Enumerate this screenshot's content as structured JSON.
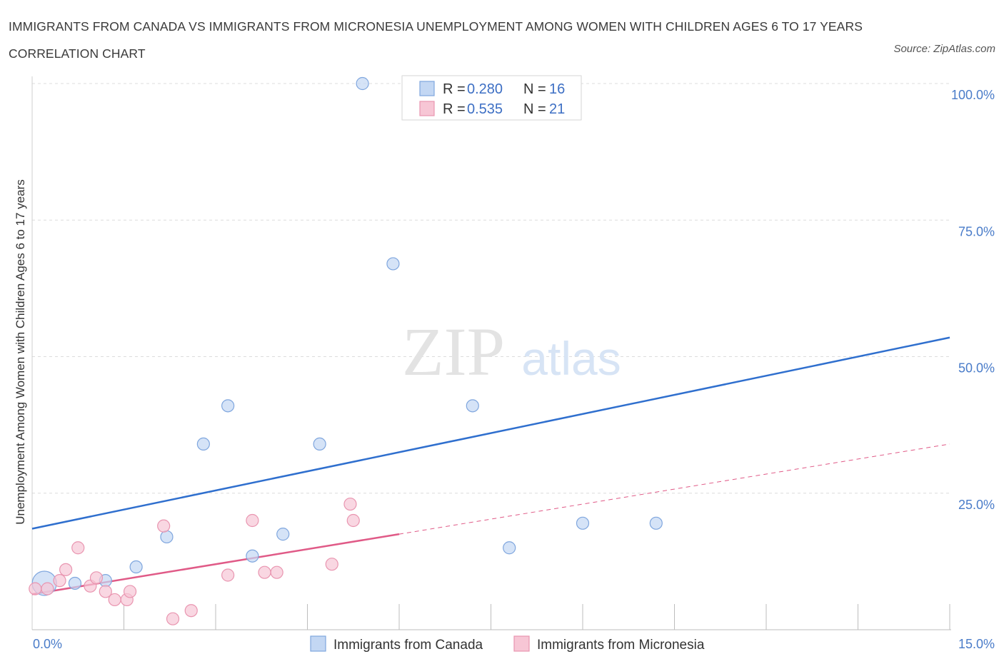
{
  "header": {
    "title": "IMMIGRANTS FROM CANADA VS IMMIGRANTS FROM MICRONESIA UNEMPLOYMENT AMONG WOMEN WITH CHILDREN AGES 6 TO 17 YEARS CORRELATION CHART",
    "source": "Source: ZipAtlas.com"
  },
  "watermark": {
    "zip": "ZIP",
    "atlas": "atlas"
  },
  "colors": {
    "canada_fill": "#c3d7f3",
    "canada_stroke": "#7fa6de",
    "canada_line": "#2f6fce",
    "micronesia_fill": "#f7c6d5",
    "micronesia_stroke": "#e995b0",
    "micronesia_line": "#e05a87",
    "grid": "#dcdcdc",
    "tick_text": "#4a7cc9"
  },
  "legend": {
    "rows": [
      {
        "r_label": "R =",
        "r_value": "0.280",
        "n_label": "N =",
        "n_value": "16"
      },
      {
        "r_label": "R =",
        "r_value": "0.535",
        "n_label": "N =",
        "n_value": "21"
      }
    ]
  },
  "chart_data": {
    "type": "scatter",
    "ylabel": "Unemployment Among Women with Children Ages 6 to 17 years",
    "x_tick_labels": [
      "0.0%",
      "15.0%"
    ],
    "y_tick_labels": [
      "100.0%",
      "75.0%",
      "50.0%",
      "25.0%"
    ],
    "xlim": [
      0,
      15
    ],
    "ylim": [
      0,
      100
    ],
    "grid": true,
    "legend_position": "top-center",
    "series": [
      {
        "name": "Immigrants from Canada",
        "color": "#7fa6de",
        "points": [
          {
            "x": 0.2,
            "y": 8.5,
            "big": true
          },
          {
            "x": 0.7,
            "y": 8.5
          },
          {
            "x": 1.2,
            "y": 9.0
          },
          {
            "x": 1.7,
            "y": 11.5
          },
          {
            "x": 2.2,
            "y": 17.0
          },
          {
            "x": 2.8,
            "y": 34.0
          },
          {
            "x": 3.2,
            "y": 41.0
          },
          {
            "x": 3.6,
            "y": 13.5
          },
          {
            "x": 4.1,
            "y": 17.5
          },
          {
            "x": 4.7,
            "y": 34.0
          },
          {
            "x": 5.4,
            "y": 100.0
          },
          {
            "x": 5.9,
            "y": 67.0
          },
          {
            "x": 7.2,
            "y": 41.0
          },
          {
            "x": 7.8,
            "y": 15.0
          },
          {
            "x": 9.0,
            "y": 19.5
          },
          {
            "x": 10.2,
            "y": 19.5
          }
        ],
        "trend": {
          "x": [
            0,
            15
          ],
          "y": [
            18.5,
            53.5
          ],
          "dashed_from": null
        }
      },
      {
        "name": "Immigrants from Micronesia",
        "color": "#e995b0",
        "points": [
          {
            "x": 0.05,
            "y": 7.5
          },
          {
            "x": 0.25,
            "y": 7.5
          },
          {
            "x": 0.45,
            "y": 9.0
          },
          {
            "x": 0.55,
            "y": 11.0
          },
          {
            "x": 0.75,
            "y": 15.0
          },
          {
            "x": 0.95,
            "y": 8.0
          },
          {
            "x": 1.05,
            "y": 9.5
          },
          {
            "x": 1.2,
            "y": 7.0
          },
          {
            "x": 1.35,
            "y": 5.5
          },
          {
            "x": 1.55,
            "y": 5.5
          },
          {
            "x": 1.6,
            "y": 7.0
          },
          {
            "x": 2.15,
            "y": 19.0
          },
          {
            "x": 2.3,
            "y": 2.0
          },
          {
            "x": 2.6,
            "y": 3.5
          },
          {
            "x": 3.2,
            "y": 10.0
          },
          {
            "x": 3.6,
            "y": 20.0
          },
          {
            "x": 3.8,
            "y": 10.5
          },
          {
            "x": 4.0,
            "y": 10.5
          },
          {
            "x": 4.9,
            "y": 12.0
          },
          {
            "x": 5.2,
            "y": 23.0
          },
          {
            "x": 5.25,
            "y": 20.0
          }
        ],
        "trend": {
          "x": [
            0,
            15
          ],
          "y": [
            6.5,
            34.0
          ],
          "dashed_from": 6.0
        }
      }
    ]
  }
}
